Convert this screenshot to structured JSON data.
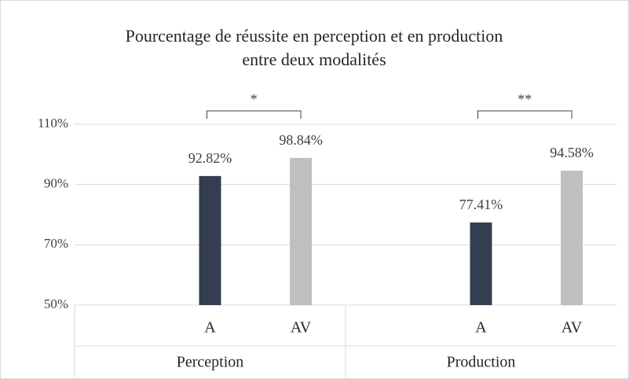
{
  "chart_data": {
    "type": "bar",
    "title": [
      "Pourcentage de réussite en perception et en production",
      "entre deux modalités"
    ],
    "groups": [
      "Perception",
      "Production"
    ],
    "categories": [
      "A",
      "AV",
      "A",
      "AV"
    ],
    "values": [
      92.82,
      98.84,
      77.41,
      94.58
    ],
    "value_labels": [
      "92.82%",
      "98.84%",
      "77.41%",
      "94.58%"
    ],
    "colors": [
      "#333f50",
      "#bfbfbf",
      "#333f50",
      "#bfbfbf"
    ],
    "annotations": [
      "*",
      "**"
    ],
    "ylim": [
      50,
      110
    ],
    "yticks": [
      {
        "value": 50,
        "label": "50%"
      },
      {
        "value": 70,
        "label": "70%"
      },
      {
        "value": 90,
        "label": "90%"
      },
      {
        "value": 110,
        "label": "110%"
      }
    ],
    "grid": true
  }
}
